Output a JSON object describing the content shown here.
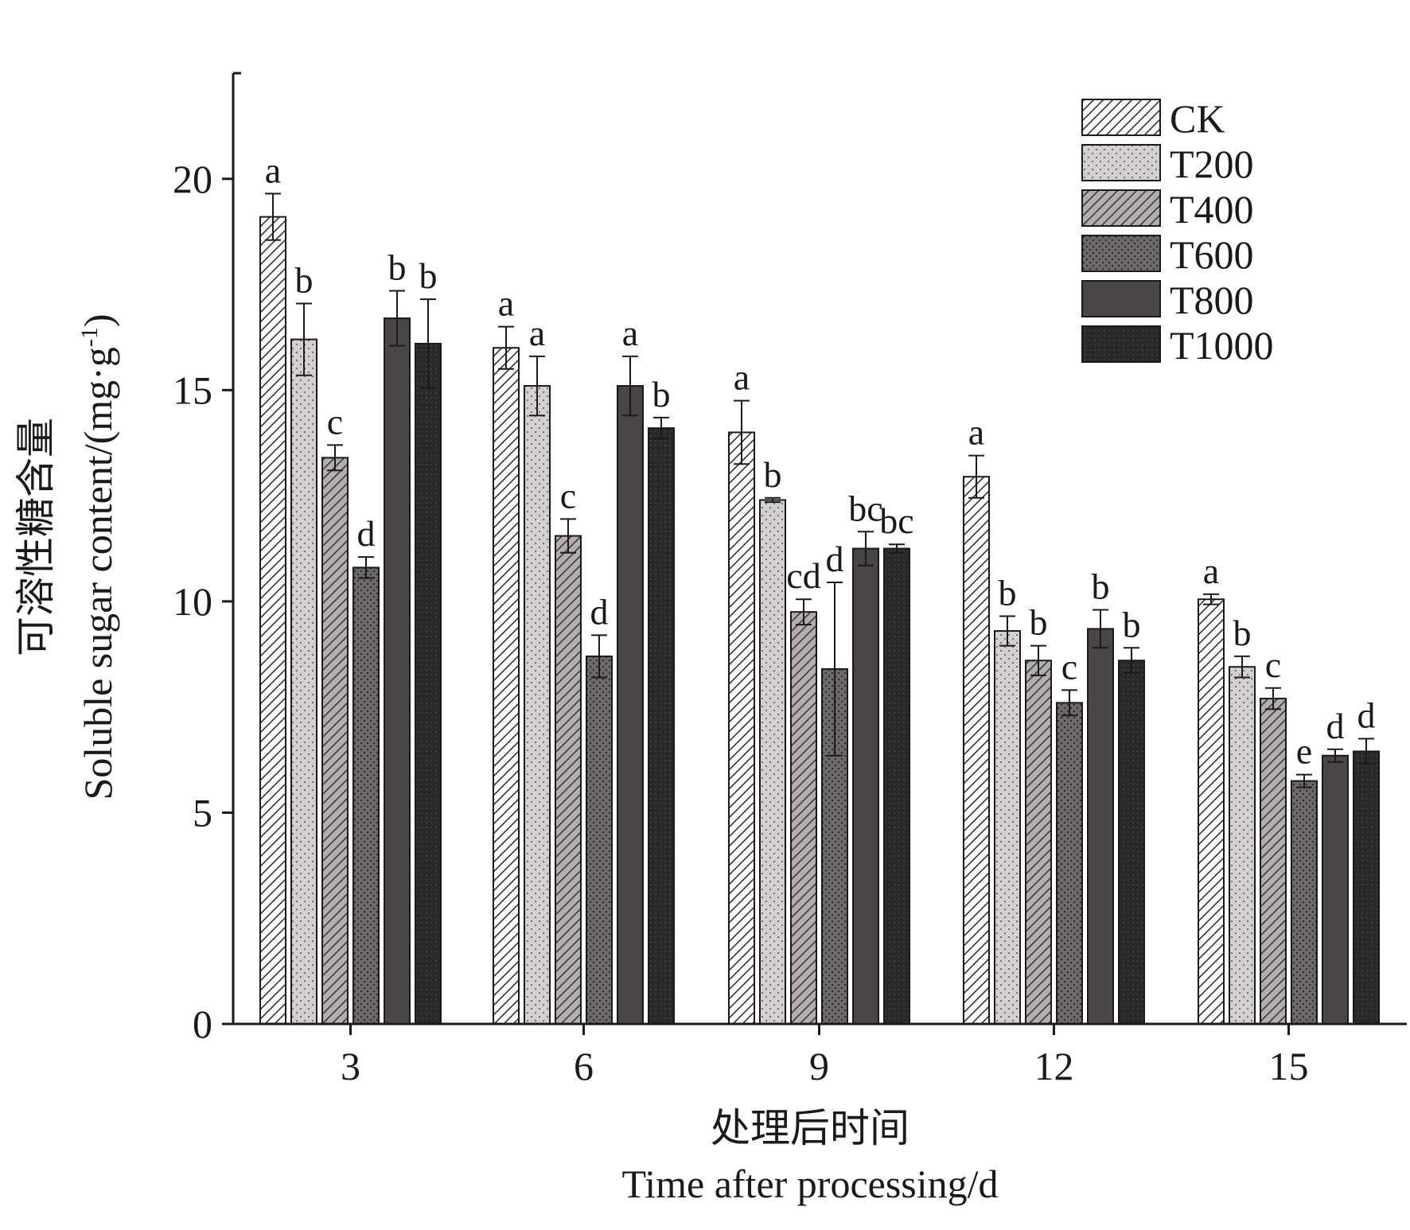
{
  "chart_data": {
    "type": "bar",
    "categories": [
      "3",
      "6",
      "9",
      "12",
      "15"
    ],
    "xlabel_cn": "处理后时间",
    "xlabel": "Time after processing/d",
    "ylabel_cn": "可溶性糖含量",
    "ylabel": "Soluble sugar content/(mg·g",
    "ylabel_sup": "-1",
    "ylabel_end": ")",
    "ylim": [
      0,
      22.5
    ],
    "yticks": [
      0,
      5,
      10,
      15,
      20
    ],
    "legend_position": "top-right",
    "series": [
      {
        "name": "CK",
        "pattern": "hatch-ck",
        "values": [
          19.1,
          16.0,
          14.0,
          12.95,
          10.05
        ],
        "errors": [
          0.55,
          0.5,
          0.75,
          0.5,
          0.12
        ],
        "letters": [
          "a",
          "a",
          "a",
          "a",
          "a"
        ]
      },
      {
        "name": "T200",
        "pattern": "dots-light",
        "values": [
          16.2,
          15.1,
          12.4,
          9.3,
          8.45
        ],
        "errors": [
          0.85,
          0.7,
          0.05,
          0.35,
          0.25
        ],
        "letters": [
          "b",
          "a",
          "b",
          "b",
          "b"
        ]
      },
      {
        "name": "T400",
        "pattern": "hatch-mid",
        "values": [
          13.4,
          11.55,
          9.75,
          8.6,
          7.7
        ],
        "errors": [
          0.3,
          0.4,
          0.3,
          0.35,
          0.25
        ],
        "letters": [
          "c",
          "c",
          "cd",
          "b",
          "c"
        ]
      },
      {
        "name": "T600",
        "pattern": "dots-dark",
        "values": [
          10.8,
          8.7,
          8.4,
          7.6,
          5.75
        ],
        "errors": [
          0.25,
          0.5,
          2.05,
          0.3,
          0.15
        ],
        "letters": [
          "d",
          "d",
          "d",
          "c",
          "e"
        ]
      },
      {
        "name": "T800",
        "pattern": "solid-dark",
        "values": [
          16.7,
          15.1,
          11.25,
          9.35,
          6.35
        ],
        "errors": [
          0.65,
          0.7,
          0.4,
          0.45,
          0.15
        ],
        "letters": [
          "b",
          "a",
          "bc",
          "b",
          "d"
        ]
      },
      {
        "name": "T1000",
        "pattern": "dots-darkest",
        "values": [
          16.1,
          14.1,
          11.25,
          8.6,
          6.45
        ],
        "errors": [
          1.05,
          0.25,
          0.1,
          0.3,
          0.3
        ],
        "letters": [
          "b",
          "b",
          "bc",
          "b",
          "d"
        ]
      }
    ]
  }
}
